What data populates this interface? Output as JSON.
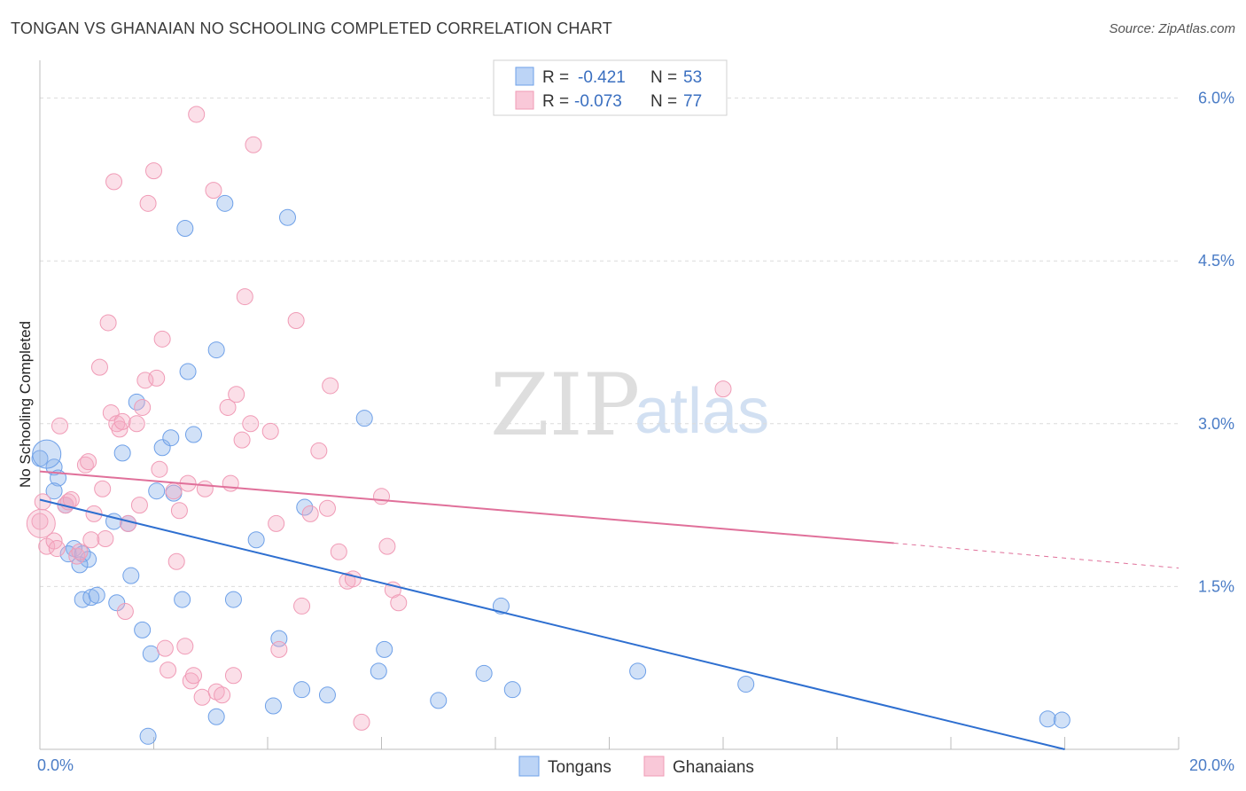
{
  "title": "TONGAN VS GHANAIAN NO SCHOOLING COMPLETED CORRELATION CHART",
  "source": "Source: ZipAtlas.com",
  "watermark": {
    "part1": "ZIP",
    "part2": "atlas"
  },
  "legend": {
    "rows": [
      {
        "r_label": "R = ",
        "r_value": "-0.421",
        "n_label": "N = ",
        "n_value": "53",
        "color": "#6ea0e8"
      },
      {
        "r_label": "R = ",
        "r_value": "-0.073",
        "n_label": "N = ",
        "n_value": "77",
        "color": "#f09bb6"
      }
    ]
  },
  "bottom_legend": [
    "Tongans",
    "Ghanaians"
  ],
  "chart_data": {
    "type": "scatter",
    "title": "TONGAN VS GHANAIAN NO SCHOOLING COMPLETED CORRELATION CHART",
    "xlabel": "",
    "ylabel": "No Schooling Completed",
    "xlim": [
      0,
      20
    ],
    "ylim": [
      0,
      6.25
    ],
    "x_tick_labels": [
      "0.0%",
      "20.0%"
    ],
    "y_ticks": [
      1.5,
      3.0,
      4.5,
      6.0
    ],
    "y_tick_labels": [
      "1.5%",
      "3.0%",
      "4.5%",
      "6.0%"
    ],
    "grid": true,
    "legend_position": "top-center",
    "series": [
      {
        "name": "Tongans",
        "color": "#6ea0e8",
        "line_color": "#2e6fd0",
        "trend": {
          "x": [
            0,
            18
          ],
          "y": [
            2.3,
            0.0
          ]
        },
        "points": [
          [
            0.0,
            2.68
          ],
          [
            0.25,
            2.6
          ],
          [
            0.32,
            2.5
          ],
          [
            0.25,
            2.38
          ],
          [
            0.45,
            2.25
          ],
          [
            0.6,
            1.85
          ],
          [
            0.5,
            1.8
          ],
          [
            0.75,
            1.8
          ],
          [
            0.85,
            1.75
          ],
          [
            0.7,
            1.7
          ],
          [
            0.75,
            1.38
          ],
          [
            0.9,
            1.4
          ],
          [
            1.0,
            1.42
          ],
          [
            1.3,
            2.1
          ],
          [
            1.55,
            2.08
          ],
          [
            1.45,
            2.73
          ],
          [
            1.7,
            3.2
          ],
          [
            1.6,
            1.6
          ],
          [
            1.35,
            1.35
          ],
          [
            1.8,
            1.1
          ],
          [
            1.95,
            0.88
          ],
          [
            1.9,
            0.12
          ],
          [
            2.05,
            2.38
          ],
          [
            2.15,
            2.78
          ],
          [
            2.3,
            2.87
          ],
          [
            2.35,
            2.36
          ],
          [
            2.5,
            1.38
          ],
          [
            2.55,
            4.8
          ],
          [
            2.6,
            3.48
          ],
          [
            2.7,
            2.9
          ],
          [
            3.1,
            0.3
          ],
          [
            3.1,
            3.68
          ],
          [
            3.25,
            5.03
          ],
          [
            3.4,
            1.38
          ],
          [
            3.8,
            1.93
          ],
          [
            4.1,
            0.4
          ],
          [
            4.2,
            1.02
          ],
          [
            4.35,
            4.9
          ],
          [
            4.6,
            0.55
          ],
          [
            4.65,
            2.23
          ],
          [
            5.05,
            0.5
          ],
          [
            5.7,
            3.05
          ],
          [
            5.95,
            0.72
          ],
          [
            6.05,
            0.92
          ],
          [
            7.0,
            0.45
          ],
          [
            7.8,
            0.7
          ],
          [
            8.1,
            1.32
          ],
          [
            8.3,
            0.55
          ],
          [
            10.5,
            0.72
          ],
          [
            12.4,
            0.6
          ],
          [
            17.7,
            0.28
          ],
          [
            17.95,
            0.27
          ],
          [
            0.12,
            2.72
          ]
        ]
      },
      {
        "name": "Ghanaians",
        "color": "#f09bb6",
        "line_color": "#e0709a",
        "trend": {
          "x": [
            0,
            15
          ],
          "y": [
            2.56,
            1.9
          ]
        },
        "trend_dashed": {
          "x": [
            15,
            20
          ],
          "y": [
            1.9,
            1.67
          ]
        },
        "points": [
          [
            0.0,
            2.1
          ],
          [
            0.05,
            2.28
          ],
          [
            0.12,
            1.87
          ],
          [
            0.25,
            1.92
          ],
          [
            0.3,
            1.85
          ],
          [
            0.35,
            2.98
          ],
          [
            0.45,
            2.25
          ],
          [
            0.5,
            2.28
          ],
          [
            0.55,
            2.3
          ],
          [
            0.65,
            1.78
          ],
          [
            0.7,
            1.82
          ],
          [
            0.8,
            2.62
          ],
          [
            0.85,
            2.65
          ],
          [
            0.9,
            1.93
          ],
          [
            0.95,
            2.17
          ],
          [
            1.05,
            3.52
          ],
          [
            1.1,
            2.4
          ],
          [
            1.15,
            1.94
          ],
          [
            1.2,
            3.93
          ],
          [
            1.25,
            3.1
          ],
          [
            1.3,
            5.23
          ],
          [
            1.35,
            3.0
          ],
          [
            1.4,
            2.95
          ],
          [
            1.45,
            3.02
          ],
          [
            1.5,
            1.27
          ],
          [
            1.55,
            2.08
          ],
          [
            1.7,
            3.0
          ],
          [
            1.75,
            2.25
          ],
          [
            1.8,
            3.15
          ],
          [
            1.85,
            3.4
          ],
          [
            1.9,
            5.03
          ],
          [
            2.0,
            5.33
          ],
          [
            2.05,
            3.42
          ],
          [
            2.1,
            2.58
          ],
          [
            2.15,
            3.78
          ],
          [
            2.2,
            0.93
          ],
          [
            2.25,
            0.73
          ],
          [
            2.35,
            2.38
          ],
          [
            2.4,
            1.73
          ],
          [
            2.45,
            2.2
          ],
          [
            2.55,
            0.95
          ],
          [
            2.6,
            2.45
          ],
          [
            2.65,
            0.63
          ],
          [
            2.7,
            0.68
          ],
          [
            2.75,
            5.85
          ],
          [
            2.85,
            0.48
          ],
          [
            2.9,
            2.4
          ],
          [
            3.05,
            5.15
          ],
          [
            3.1,
            0.53
          ],
          [
            3.2,
            0.5
          ],
          [
            3.3,
            3.15
          ],
          [
            3.35,
            2.45
          ],
          [
            3.4,
            0.68
          ],
          [
            3.45,
            3.27
          ],
          [
            3.55,
            2.85
          ],
          [
            3.6,
            4.17
          ],
          [
            3.7,
            3.0
          ],
          [
            3.75,
            5.57
          ],
          [
            4.05,
            2.93
          ],
          [
            4.15,
            2.08
          ],
          [
            4.2,
            0.92
          ],
          [
            4.5,
            3.95
          ],
          [
            4.6,
            1.32
          ],
          [
            4.75,
            2.17
          ],
          [
            4.9,
            2.75
          ],
          [
            5.05,
            2.22
          ],
          [
            5.1,
            3.35
          ],
          [
            5.25,
            1.82
          ],
          [
            5.4,
            1.55
          ],
          [
            5.5,
            1.57
          ],
          [
            5.65,
            0.25
          ],
          [
            6.0,
            2.33
          ],
          [
            6.1,
            1.87
          ],
          [
            6.2,
            1.47
          ],
          [
            6.3,
            1.35
          ],
          [
            12.0,
            3.32
          ],
          [
            0.02,
            2.08
          ]
        ]
      }
    ]
  }
}
